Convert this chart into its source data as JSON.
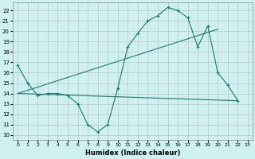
{
  "xlabel": "Humidex (Indice chaleur)",
  "ylabel": "",
  "xlim": [
    -0.5,
    23.5
  ],
  "ylim": [
    9.5,
    22.8
  ],
  "yticks": [
    10,
    11,
    12,
    13,
    14,
    15,
    16,
    17,
    18,
    19,
    20,
    21,
    22
  ],
  "xticks": [
    0,
    1,
    2,
    3,
    4,
    5,
    6,
    7,
    8,
    9,
    10,
    11,
    12,
    13,
    14,
    15,
    16,
    17,
    18,
    19,
    20,
    21,
    22,
    23
  ],
  "bg_color": "#cff0f0",
  "line_color": "#1a7a6e",
  "line1_x": [
    0,
    1,
    2,
    3,
    4,
    5,
    6,
    7,
    8,
    9,
    10,
    11,
    12,
    13,
    14,
    15,
    16,
    17,
    18,
    19,
    20,
    21,
    22
  ],
  "line1_y": [
    16.7,
    15.0,
    13.8,
    14.0,
    14.0,
    13.8,
    13.0,
    11.0,
    10.3,
    11.0,
    14.5,
    18.5,
    19.8,
    21.0,
    21.5,
    22.3,
    22.0,
    21.3,
    18.5,
    20.5,
    16.0,
    14.8,
    13.3
  ],
  "line2_x": [
    0,
    20
  ],
  "line2_y": [
    14.0,
    20.2
  ],
  "line3_x": [
    0,
    22
  ],
  "line3_y": [
    14.0,
    13.3
  ]
}
